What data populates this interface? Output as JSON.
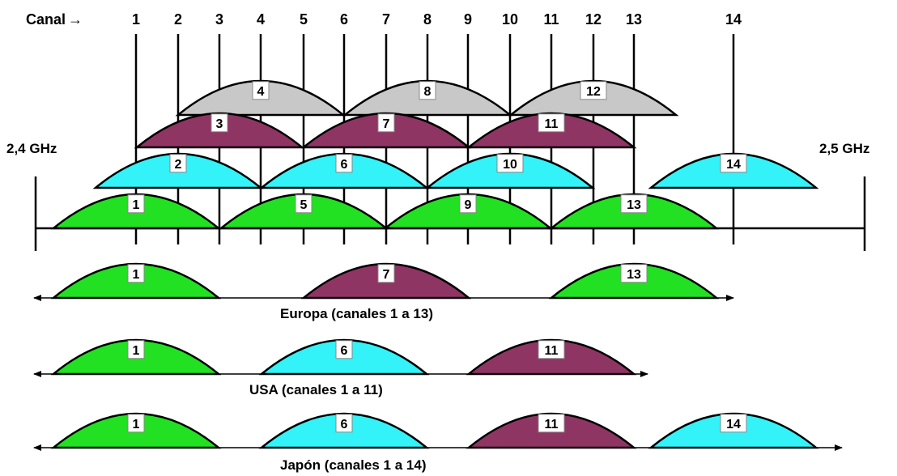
{
  "header": {
    "label": "Canal",
    "arrow": "→"
  },
  "frequency": {
    "start_label": "2,4 GHz",
    "end_label": "2,5 GHz"
  },
  "channels": [
    "1",
    "2",
    "3",
    "4",
    "5",
    "6",
    "7",
    "8",
    "9",
    "10",
    "11",
    "12",
    "13",
    "14"
  ],
  "colors": {
    "green": "#22e022",
    "cyan": "#33f2f8",
    "purple": "#8f3563",
    "gray": "#c8c8c8"
  },
  "overlap_rows": [
    {
      "color": "gray",
      "channels": [
        "4",
        "8",
        "12"
      ]
    },
    {
      "color": "purple",
      "channels": [
        "3",
        "7",
        "11"
      ]
    },
    {
      "color": "cyan",
      "channels": [
        "2",
        "6",
        "10",
        "14"
      ]
    },
    {
      "color": "green",
      "channels": [
        "1",
        "5",
        "9",
        "13"
      ]
    }
  ],
  "regions": [
    {
      "caption": "Europa (canales 1 a 13)",
      "bands": [
        {
          "channel": "1",
          "color": "green"
        },
        {
          "channel": "7",
          "color": "purple"
        },
        {
          "channel": "13",
          "color": "green"
        }
      ]
    },
    {
      "caption": "USA (canales 1 a 11)",
      "bands": [
        {
          "channel": "1",
          "color": "green"
        },
        {
          "channel": "6",
          "color": "cyan"
        },
        {
          "channel": "11",
          "color": "purple"
        }
      ]
    },
    {
      "caption": "Japón (canales 1 a 14)",
      "bands": [
        {
          "channel": "1",
          "color": "green"
        },
        {
          "channel": "6",
          "color": "cyan"
        },
        {
          "channel": "11",
          "color": "purple"
        },
        {
          "channel": "14",
          "color": "cyan"
        }
      ]
    }
  ]
}
